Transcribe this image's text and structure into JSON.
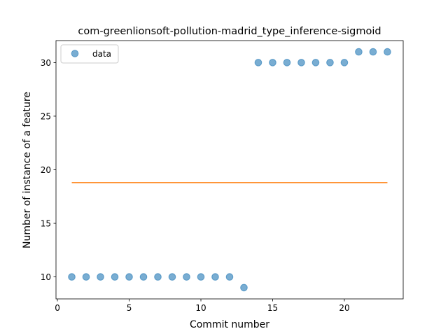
{
  "chart_data": {
    "type": "scatter",
    "title": "com-greenlionsoft-pollution-madrid_type_inference-sigmoid",
    "xlabel": "Commit number",
    "ylabel": "Number of instance of a feature",
    "xlim": [
      -0.1,
      24.1
    ],
    "ylim": [
      7.95,
      32.05
    ],
    "xticks": [
      0,
      5,
      10,
      15,
      20
    ],
    "yticks": [
      10,
      15,
      20,
      25,
      30
    ],
    "grid": false,
    "legend": {
      "position": "top-left",
      "entries": [
        "data"
      ]
    },
    "series": [
      {
        "name": "data",
        "kind": "scatter",
        "color": "#1f77b4",
        "x": [
          1,
          2,
          3,
          4,
          5,
          6,
          7,
          8,
          9,
          10,
          11,
          12,
          13,
          14,
          15,
          16,
          17,
          18,
          19,
          20,
          21,
          22,
          23
        ],
        "y": [
          10,
          10,
          10,
          10,
          10,
          10,
          10,
          10,
          10,
          10,
          10,
          10,
          9,
          30,
          30,
          30,
          30,
          30,
          30,
          30,
          31,
          31,
          31
        ]
      },
      {
        "kind": "line",
        "color": "#ff7f0e",
        "x": [
          1,
          23
        ],
        "y": [
          18.8,
          18.8
        ]
      }
    ]
  }
}
